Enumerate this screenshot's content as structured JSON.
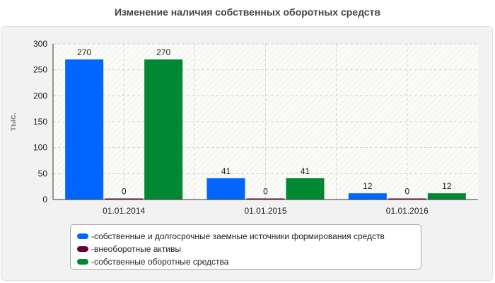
{
  "chart_data": {
    "type": "bar",
    "title": "Изменение наличия собственных оборотных средств",
    "ylabel": "тыс.",
    "ylim": [
      0,
      300
    ],
    "yticks": [
      0,
      50,
      100,
      150,
      200,
      250,
      300
    ],
    "categories": [
      "01.01.2014",
      "01.01.2015",
      "01.01.2016"
    ],
    "series": [
      {
        "name": "собственные и долгосрочные заемные источники формирования средств",
        "values": [
          270,
          41,
          12
        ],
        "color": "#0066ff"
      },
      {
        "name": "внеоборотные активы",
        "values": [
          0,
          0,
          0
        ],
        "color": "#6b0033"
      },
      {
        "name": "собственные оборотные средства",
        "values": [
          270,
          41,
          12
        ],
        "color": "#008833"
      }
    ],
    "grid": true,
    "legend_position": "bottom"
  }
}
